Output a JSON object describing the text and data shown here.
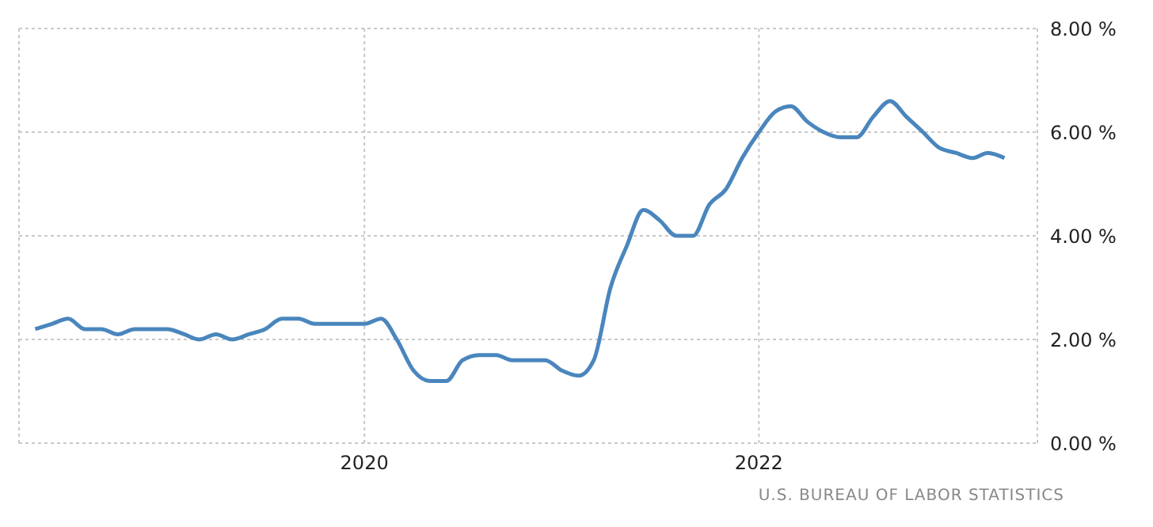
{
  "chart_data": {
    "type": "line",
    "x": [
      "2018-05",
      "2018-06",
      "2018-07",
      "2018-08",
      "2018-09",
      "2018-10",
      "2018-11",
      "2018-12",
      "2019-01",
      "2019-02",
      "2019-03",
      "2019-04",
      "2019-05",
      "2019-06",
      "2019-07",
      "2019-08",
      "2019-09",
      "2019-10",
      "2019-11",
      "2019-12",
      "2020-01",
      "2020-02",
      "2020-03",
      "2020-04",
      "2020-05",
      "2020-06",
      "2020-07",
      "2020-08",
      "2020-09",
      "2020-10",
      "2020-11",
      "2020-12",
      "2021-01",
      "2021-02",
      "2021-03",
      "2021-04",
      "2021-05",
      "2021-06",
      "2021-07",
      "2021-08",
      "2021-09",
      "2021-10",
      "2021-11",
      "2021-12",
      "2022-01",
      "2022-02",
      "2022-03",
      "2022-04",
      "2022-05",
      "2022-06",
      "2022-07",
      "2022-08",
      "2022-09",
      "2022-10",
      "2022-11",
      "2022-12",
      "2023-01",
      "2023-02",
      "2023-03",
      "2023-04"
    ],
    "series": [
      {
        "color": "#4a86bd",
        "values": [
          2.2,
          2.3,
          2.4,
          2.2,
          2.2,
          2.1,
          2.2,
          2.2,
          2.2,
          2.1,
          2.0,
          2.1,
          2.0,
          2.1,
          2.2,
          2.4,
          2.4,
          2.3,
          2.3,
          2.3,
          2.3,
          2.4,
          2.0,
          1.4,
          1.2,
          1.2,
          1.6,
          1.7,
          1.7,
          1.6,
          1.6,
          1.6,
          1.4,
          1.3,
          1.6,
          3.0,
          3.8,
          4.5,
          4.3,
          4.0,
          4.0,
          4.6,
          4.9,
          5.5,
          6.0,
          6.4,
          6.5,
          6.2,
          6.0,
          5.9,
          5.9,
          6.3,
          6.6,
          6.3,
          6.0,
          5.7,
          5.6,
          5.5,
          5.6,
          5.5
        ]
      }
    ],
    "xlim": [
      "2018-04",
      "2023-06"
    ],
    "xticks": [
      {
        "value": "2020-01",
        "label": "2020"
      },
      {
        "value": "2022-01",
        "label": "2022"
      }
    ],
    "ylim": [
      0,
      8
    ],
    "yticks": [
      {
        "value": 0,
        "label": "0.00 %"
      },
      {
        "value": 2,
        "label": "2.00 %"
      },
      {
        "value": 4,
        "label": "4.00 %"
      },
      {
        "value": 6,
        "label": "6.00 %"
      },
      {
        "value": 8,
        "label": "8.00 %"
      }
    ],
    "grid": true,
    "legend": false,
    "marker": "none",
    "line_style": "solid",
    "annotations": [
      "U.S. BUREAU OF LABOR STATISTICS"
    ]
  }
}
